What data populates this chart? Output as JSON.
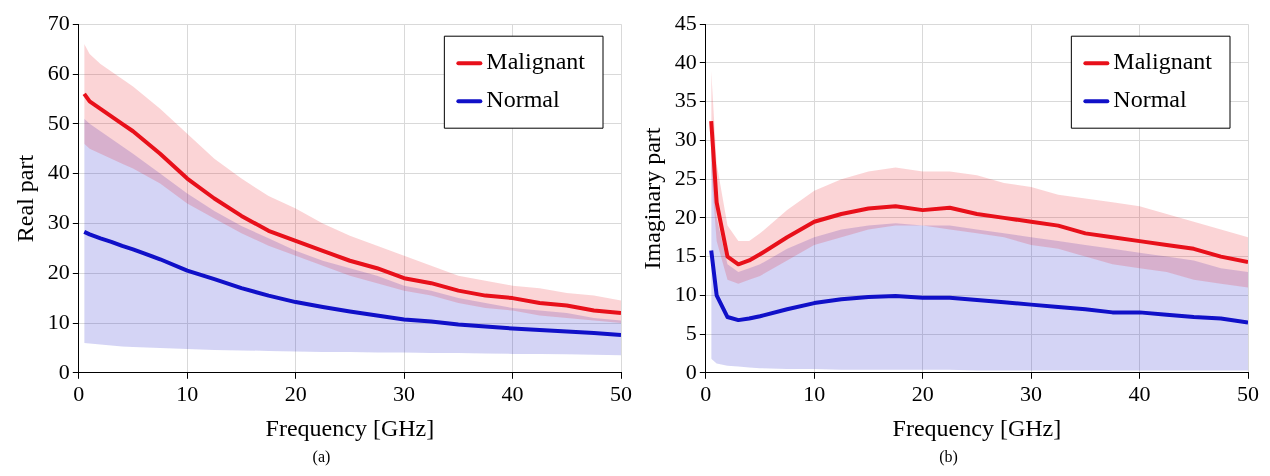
{
  "chart_data": [
    {
      "type": "line",
      "xlabel": "Frequency [GHz]",
      "ylabel": "Real part",
      "annotations": [
        "(a)"
      ],
      "x": [
        0.5,
        1,
        2,
        3,
        4,
        5,
        7.5,
        10,
        12.5,
        15,
        17.5,
        20,
        22.5,
        25,
        27.5,
        30,
        32.5,
        35,
        37.5,
        40,
        42.5,
        45,
        47.5,
        50
      ],
      "series": [
        {
          "name": "Malignant",
          "color": "#e8101a",
          "values": [
            56,
            54.5,
            53,
            51.5,
            50,
            48.5,
            44,
            39,
            35,
            31.5,
            28.5,
            26.5,
            24.5,
            22.5,
            21,
            19,
            18,
            16.5,
            15.5,
            15,
            14,
            13.5,
            12.5,
            12
          ],
          "lower": [
            46,
            45,
            44,
            43,
            42,
            41,
            38,
            34,
            31,
            28,
            25.5,
            23.5,
            21.5,
            19.5,
            18,
            16.5,
            15.5,
            14,
            13,
            12.5,
            11.5,
            11,
            10.5,
            10
          ],
          "upper": [
            66,
            64,
            62,
            60.5,
            59,
            57.5,
            53,
            48,
            43,
            39,
            35.5,
            33,
            30,
            27.5,
            25.5,
            23.5,
            21.5,
            19.5,
            18.5,
            17.5,
            17,
            16,
            15.5,
            14.5
          ]
        },
        {
          "name": "Normal",
          "color": "#1010c8",
          "values": [
            28.3,
            27.8,
            27,
            26.3,
            25.5,
            24.8,
            22.8,
            20.5,
            18.8,
            17,
            15.5,
            14.2,
            13.2,
            12.3,
            11.5,
            10.7,
            10.3,
            9.7,
            9.3,
            8.9,
            8.6,
            8.3,
            8,
            7.6
          ],
          "lower": [
            6,
            5.9,
            5.7,
            5.5,
            5.3,
            5.2,
            5,
            4.8,
            4.6,
            4.5,
            4.4,
            4.3,
            4.2,
            4.2,
            4.1,
            4.1,
            4,
            4,
            3.9,
            3.8,
            3.8,
            3.7,
            3.6,
            3.5
          ],
          "upper": [
            51,
            50,
            48.5,
            47,
            45.5,
            44,
            40,
            36,
            32.5,
            29.5,
            27,
            24.5,
            22.5,
            21,
            19.5,
            17.5,
            16.5,
            15,
            14,
            13,
            12.5,
            12,
            11,
            10.5
          ]
        }
      ],
      "xlim": [
        0,
        50
      ],
      "xticks": [
        0,
        10,
        20,
        30,
        40,
        50
      ],
      "ylim": [
        0,
        70
      ],
      "yticks": [
        0,
        10,
        20,
        30,
        40,
        50,
        60,
        70
      ],
      "grid": true,
      "legend": "top right"
    },
    {
      "type": "line",
      "xlabel": "Frequency [GHz]",
      "ylabel": "Imaginary part",
      "annotations": [
        "(b)"
      ],
      "x": [
        0.5,
        1,
        2,
        3,
        4,
        5,
        7.5,
        10,
        12.5,
        15,
        17.5,
        20,
        22.5,
        25,
        27.5,
        30,
        32.5,
        35,
        37.5,
        40,
        42.5,
        45,
        47.5,
        50
      ],
      "series": [
        {
          "name": "Malignant",
          "color": "#e8101a",
          "values": [
            32.5,
            22,
            15,
            14,
            14.5,
            15.3,
            17.5,
            19.5,
            20.5,
            21.2,
            21.5,
            21,
            21.3,
            20.5,
            20,
            19.5,
            19,
            18,
            17.5,
            17,
            16.5,
            16,
            15,
            14.3
          ],
          "lower": [
            26,
            17,
            12,
            11.5,
            12,
            12.5,
            14.5,
            16.5,
            17.5,
            18.5,
            19,
            19,
            18.5,
            18,
            17.5,
            16.5,
            16,
            15,
            14,
            13.5,
            13,
            12,
            11.5,
            11
          ],
          "upper": [
            39,
            27,
            19,
            17,
            17,
            18,
            21,
            23.5,
            25,
            26,
            26.5,
            26,
            26,
            25.5,
            24.5,
            24,
            23,
            22.5,
            22,
            21.5,
            20.5,
            19.5,
            18.5,
            17.5
          ]
        },
        {
          "name": "Normal",
          "color": "#1010c8",
          "values": [
            15.8,
            10,
            7.2,
            6.8,
            7,
            7.3,
            8.2,
            9,
            9.5,
            9.8,
            9.9,
            9.7,
            9.7,
            9.4,
            9.1,
            8.8,
            8.5,
            8.2,
            7.8,
            7.8,
            7.5,
            7.2,
            7,
            6.5
          ],
          "lower": [
            1.8,
            1.2,
            0.9,
            0.8,
            0.7,
            0.6,
            0.5,
            0.5,
            0.4,
            0.4,
            0.4,
            0.4,
            0.4,
            0.3,
            0.3,
            0.3,
            0.3,
            0.3,
            0.3,
            0.3,
            0.3,
            0.3,
            0.3,
            0.3
          ],
          "upper": [
            30,
            20,
            14,
            13,
            13.5,
            14,
            16,
            17.5,
            18.5,
            19,
            19.3,
            19,
            19,
            18.5,
            18,
            17.5,
            17,
            16.5,
            16,
            15.5,
            15,
            14.5,
            13.5,
            13
          ]
        }
      ],
      "xlim": [
        0,
        50
      ],
      "xticks": [
        0,
        10,
        20,
        30,
        40,
        50
      ],
      "ylim": [
        0,
        45
      ],
      "yticks": [
        0,
        5,
        10,
        15,
        20,
        25,
        30,
        35,
        40,
        45
      ],
      "grid": true,
      "legend": "top right"
    }
  ]
}
